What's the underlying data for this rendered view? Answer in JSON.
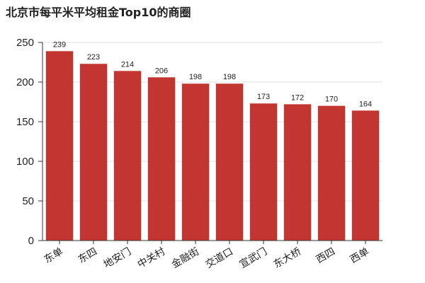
{
  "chart_data": {
    "type": "bar",
    "title": "北京市每平米平均租金Top10的商圈",
    "xlabel": "",
    "ylabel": "",
    "categories": [
      "东单",
      "东四",
      "地安门",
      "中关村",
      "金融街",
      "交道口",
      "宣武门",
      "东大桥",
      "西四",
      "西单"
    ],
    "values": [
      239,
      223,
      214,
      206,
      198,
      198,
      173,
      172,
      170,
      164
    ],
    "ylim": [
      0,
      250
    ],
    "yticks": [
      0,
      50,
      100,
      150,
      200,
      250
    ],
    "grid": true,
    "legend": "none",
    "bar_color": "#c23531",
    "data_labels": true
  }
}
